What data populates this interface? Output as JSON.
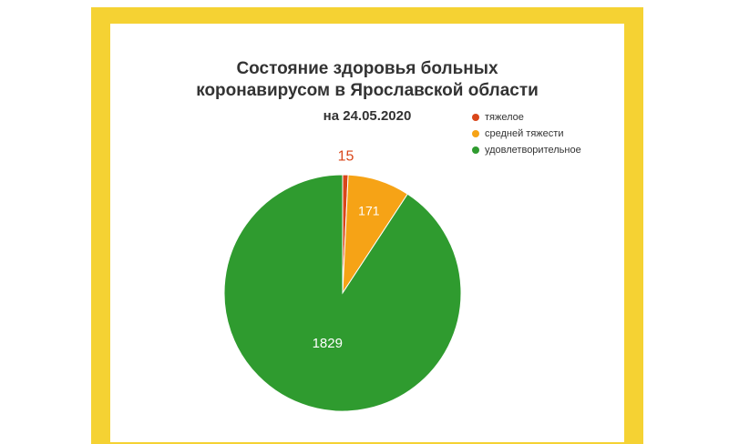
{
  "title_line1": "Состояние здоровья больных",
  "title_line2": "коронавирусом в Ярославской области",
  "date_label": "на 24.05.2020",
  "chart_data": {
    "type": "pie",
    "title": "Состояние здоровья больных коронавирусом в Ярославской области на 24.05.2020",
    "categories": [
      "тяжелое",
      "средней тяжести",
      "удовлетворительное"
    ],
    "values": [
      15,
      171,
      1829
    ],
    "colors": [
      "#d9461a",
      "#f6a316",
      "#2f9b2f"
    ],
    "legend_position": "top-right",
    "data_labels": [
      "15",
      "171",
      "1829"
    ]
  }
}
